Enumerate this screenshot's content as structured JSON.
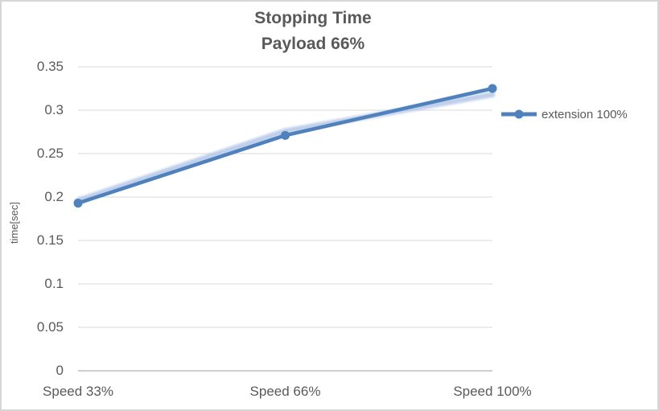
{
  "chart": {
    "title_line1": "Stopping Time",
    "title_line2": "Payload 66%",
    "y_axis_title": "time[sec]",
    "legend_label": "extension 100%"
  },
  "chart_data": {
    "type": "line",
    "title": "Stopping Time Payload 66%",
    "categories": [
      "Speed 33%",
      "Speed 66%",
      "Speed 100%"
    ],
    "series": [
      {
        "name": "extension 100%",
        "values": [
          0.193,
          0.271,
          0.325
        ],
        "marker": "circle"
      }
    ],
    "shadow_halo_values": [
      0.196,
      0.276,
      0.318
    ],
    "xlabel": "",
    "ylabel": "time[sec]",
    "ylim": [
      0,
      0.35
    ],
    "ytick_step": 0.05,
    "grid": true,
    "legend_position": "right",
    "colors": {
      "series": "#4F81BD",
      "halo": "#B4C7E7",
      "gridline": "#D9D9D9",
      "axis_line": "#BFBFBF",
      "text": "#595959",
      "border": "#D6D6D6"
    }
  }
}
